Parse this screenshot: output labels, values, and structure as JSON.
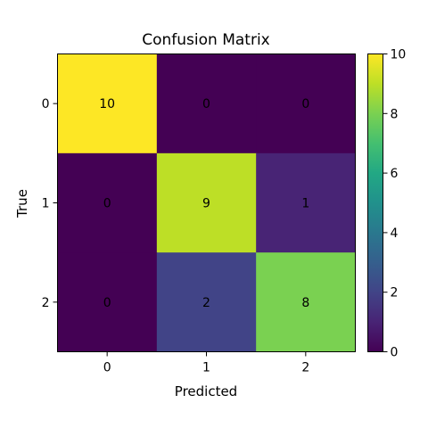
{
  "chart_data": {
    "type": "heatmap",
    "title": "Confusion Matrix",
    "xlabel": "Predicted",
    "ylabel": "True",
    "x_categories": [
      "0",
      "1",
      "2"
    ],
    "y_categories": [
      "0",
      "1",
      "2"
    ],
    "values": [
      [
        10,
        0,
        0
      ],
      [
        0,
        9,
        1
      ],
      [
        0,
        2,
        8
      ]
    ],
    "colorscale": "viridis",
    "vmin": 0,
    "vmax": 10,
    "colorbar_ticks": [
      "0",
      "2",
      "4",
      "6",
      "8",
      "10"
    ]
  }
}
